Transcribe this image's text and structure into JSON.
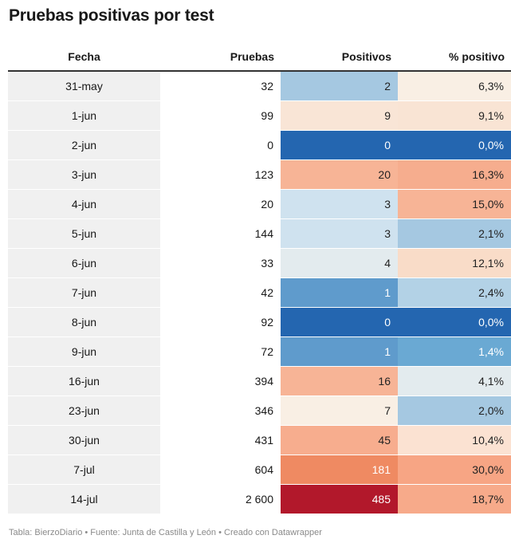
{
  "title": "Pruebas positivas por test",
  "footer": "Tabla: BierzoDiario • Fuente: Junta de Castilla y León • Creado con Datawrapper",
  "chart_data": {
    "type": "table",
    "title": "Pruebas positivas por test",
    "columns": [
      "Fecha",
      "Pruebas",
      "Positivos",
      "% positivo"
    ],
    "rows": [
      {
        "fecha": "31-may",
        "pruebas": "32",
        "positivos": "2",
        "pct": "6,3%",
        "pos_bg": "#a5c8e1",
        "pos_fg": "#222222",
        "pct_bg": "#f9efe4",
        "pct_fg": "#222222"
      },
      {
        "fecha": "1-jun",
        "pruebas": "99",
        "positivos": "9",
        "pct": "9,1%",
        "pos_bg": "#f9e5d6",
        "pos_fg": "#222222",
        "pct_bg": "#f9e4d4",
        "pct_fg": "#222222"
      },
      {
        "fecha": "2-jun",
        "pruebas": "0",
        "positivos": "0",
        "pct": "0,0%",
        "pos_bg": "#2466b0",
        "pos_fg": "#ffffff",
        "pct_bg": "#2466b0",
        "pct_fg": "#ffffff"
      },
      {
        "fecha": "3-jun",
        "pruebas": "123",
        "positivos": "20",
        "pct": "16,3%",
        "pos_bg": "#f7b496",
        "pos_fg": "#222222",
        "pct_bg": "#f6ad8e",
        "pct_fg": "#222222"
      },
      {
        "fecha": "4-jun",
        "pruebas": "20",
        "positivos": "3",
        "pct": "15,0%",
        "pos_bg": "#cfe2ef",
        "pos_fg": "#222222",
        "pct_bg": "#f7b496",
        "pct_fg": "#222222"
      },
      {
        "fecha": "5-jun",
        "pruebas": "144",
        "positivos": "3",
        "pct": "2,1%",
        "pos_bg": "#cfe2ef",
        "pos_fg": "#222222",
        "pct_bg": "#a5c8e1",
        "pct_fg": "#222222"
      },
      {
        "fecha": "6-jun",
        "pruebas": "33",
        "positivos": "4",
        "pct": "12,1%",
        "pos_bg": "#e3ebee",
        "pos_fg": "#222222",
        "pct_bg": "#f9dcc8",
        "pct_fg": "#222222"
      },
      {
        "fecha": "7-jun",
        "pruebas": "42",
        "positivos": "1",
        "pct": "2,4%",
        "pos_bg": "#5f9bcc",
        "pos_fg": "#ffffff",
        "pct_bg": "#b3d2e6",
        "pct_fg": "#222222"
      },
      {
        "fecha": "8-jun",
        "pruebas": "92",
        "positivos": "0",
        "pct": "0,0%",
        "pos_bg": "#2466b0",
        "pos_fg": "#ffffff",
        "pct_bg": "#2466b0",
        "pct_fg": "#ffffff"
      },
      {
        "fecha": "9-jun",
        "pruebas": "72",
        "positivos": "1",
        "pct": "1,4%",
        "pos_bg": "#5f9bcc",
        "pos_fg": "#ffffff",
        "pct_bg": "#6aa9d3",
        "pct_fg": "#ffffff"
      },
      {
        "fecha": "16-jun",
        "pruebas": "394",
        "positivos": "16",
        "pct": "4,1%",
        "pos_bg": "#f7b496",
        "pos_fg": "#222222",
        "pct_bg": "#e3ebee",
        "pct_fg": "#222222"
      },
      {
        "fecha": "23-jun",
        "pruebas": "346",
        "positivos": "7",
        "pct": "2,0%",
        "pos_bg": "#f9efe4",
        "pos_fg": "#222222",
        "pct_bg": "#a5c8e1",
        "pct_fg": "#222222"
      },
      {
        "fecha": "30-jun",
        "pruebas": "431",
        "positivos": "45",
        "pct": "10,4%",
        "pos_bg": "#f7ad8e",
        "pos_fg": "#222222",
        "pct_bg": "#fbe2d2",
        "pct_fg": "#222222"
      },
      {
        "fecha": "7-jul",
        "pruebas": "604",
        "positivos": "181",
        "pct": "30,0%",
        "pos_bg": "#ef8a62",
        "pos_fg": "#ffffff",
        "pct_bg": "#f7a584",
        "pct_fg": "#222222"
      },
      {
        "fecha": "14-jul",
        "pruebas": "2 600",
        "positivos": "485",
        "pct": "18,7%",
        "pos_bg": "#b2182b",
        "pos_fg": "#ffffff",
        "pct_bg": "#f7aa8a",
        "pct_fg": "#222222"
      }
    ]
  }
}
